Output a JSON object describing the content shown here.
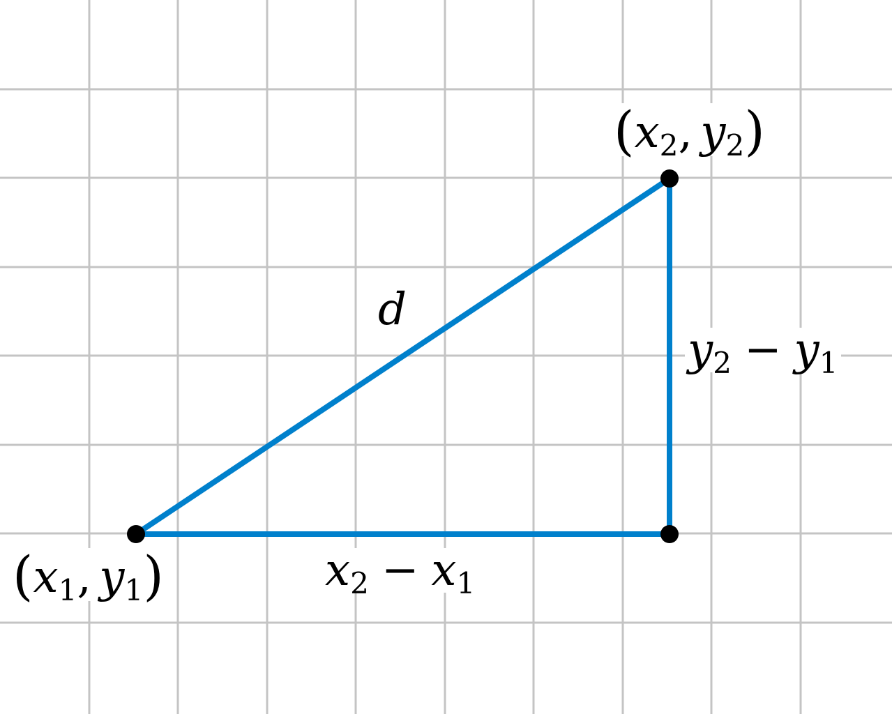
{
  "colors": {
    "grid": "#c4c4c4",
    "segment": "#0080cc",
    "point": "#000000",
    "background": "#ffffff"
  },
  "labels": {
    "p1": {
      "lparen": "(",
      "x": "x",
      "xsub": "1",
      "comma": ",",
      "y": "y",
      "ysub": "1",
      "rparen": ")"
    },
    "p2": {
      "lparen": "(",
      "x": "x",
      "xsub": "2",
      "comma": ",",
      "y": "y",
      "ysub": "2",
      "rparen": ")"
    },
    "hypotenuse": "d",
    "horizontal": {
      "a": "x",
      "asub": "2",
      "op": "−",
      "b": "x",
      "bsub": "1"
    },
    "vertical": {
      "a": "y",
      "asub": "2",
      "op": "−",
      "b": "y",
      "bsub": "1"
    }
  }
}
